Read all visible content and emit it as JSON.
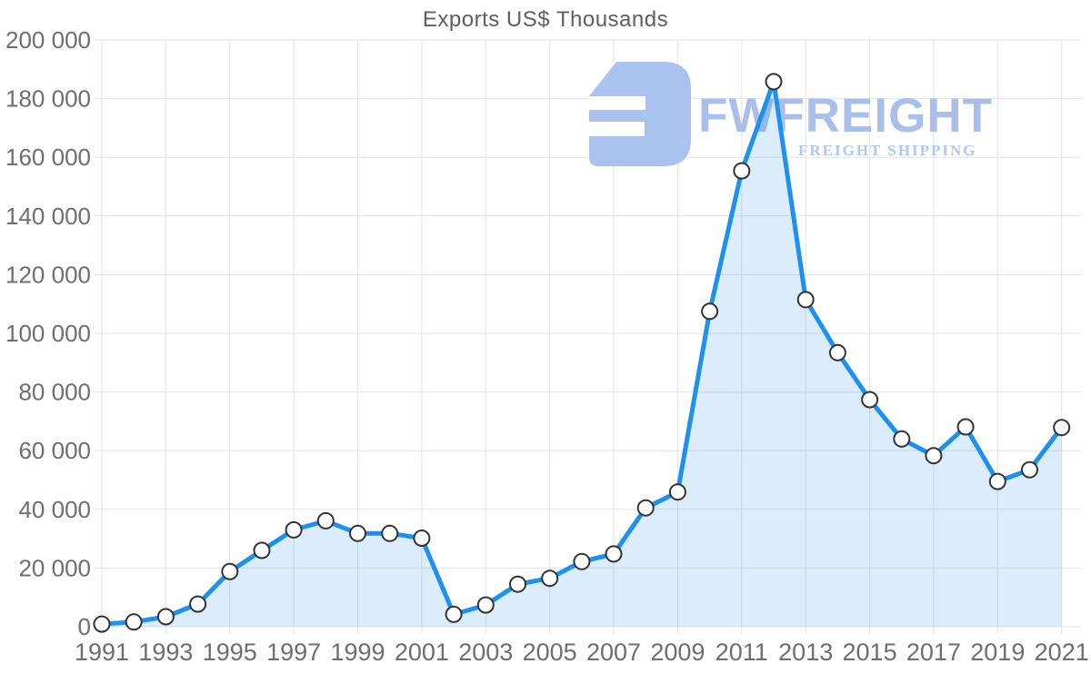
{
  "title": "Exports US$ Thousands",
  "watermark": {
    "brand": "FWFREIGHT",
    "tagline": "FREIGHT SHIPPING",
    "icon_color": "#a9c3ee",
    "brand_color": "#a9bfe9",
    "tagline_color": "#b2c7f0"
  },
  "chart_data": {
    "type": "area",
    "title": "Exports US$ Thousands",
    "series_name": "Exports US$ Thousands",
    "x": [
      1991,
      1992,
      1993,
      1994,
      1995,
      1996,
      1997,
      1998,
      1999,
      2000,
      2001,
      2002,
      2003,
      2004,
      2005,
      2006,
      2007,
      2008,
      2009,
      2010,
      2011,
      2012,
      2013,
      2014,
      2015,
      2016,
      2017,
      2018,
      2019,
      2020,
      2021
    ],
    "values": [
      900,
      1600,
      3400,
      7700,
      18800,
      26000,
      33000,
      36100,
      31800,
      31800,
      30200,
      4200,
      7400,
      14500,
      16500,
      22200,
      24800,
      40500,
      45900,
      107500,
      155400,
      185800,
      111500,
      93400,
      77400,
      64000,
      58300,
      68100,
      49500,
      53500,
      67900
    ],
    "ylim": [
      0,
      200000
    ],
    "y_tick_step": 20000,
    "y_tick_labels": [
      "0",
      "20 000",
      "40 000",
      "60 000",
      "80 000",
      "100 000",
      "120 000",
      "140 000",
      "160 000",
      "180 000",
      "200 000"
    ],
    "x_tick_labels": [
      "1991",
      "1993",
      "1995",
      "1997",
      "1999",
      "2001",
      "2003",
      "2005",
      "2007",
      "2009",
      "2011",
      "2013",
      "2015",
      "2017",
      "2019",
      "2021"
    ],
    "grid": true,
    "legend": false,
    "markers": true,
    "colors": {
      "line": "#1e90f0",
      "fill": "rgba(30,144,240,0.16)",
      "marker_fill": "#ffffff",
      "marker_stroke": "#333333",
      "grid": "#e3e3e3",
      "tick_text": "#6e6e6e",
      "title_text": "#5f5f5f"
    }
  }
}
